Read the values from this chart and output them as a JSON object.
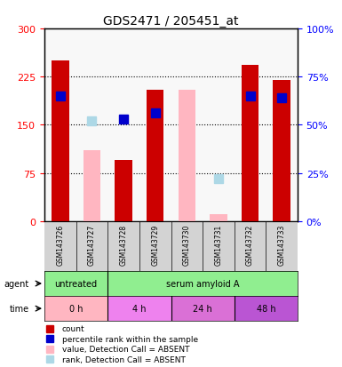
{
  "title": "GDS2471 / 205451_at",
  "samples": [
    "GSM143726",
    "GSM143727",
    "GSM143728",
    "GSM143729",
    "GSM143730",
    "GSM143731",
    "GSM143732",
    "GSM143733"
  ],
  "red_values": [
    250,
    0,
    95,
    205,
    0,
    5,
    243,
    220
  ],
  "pink_values": [
    0,
    110,
    0,
    0,
    205,
    10,
    0,
    0
  ],
  "blue_pct": [
    65,
    0,
    53,
    56,
    0,
    0,
    65,
    64
  ],
  "lblue_pct": [
    0,
    52,
    0,
    0,
    0,
    22,
    0,
    0
  ],
  "ylim_left": [
    0,
    300
  ],
  "ylim_right": [
    0,
    100
  ],
  "yticks_left": [
    0,
    75,
    150,
    225,
    300
  ],
  "ytick_labels_left": [
    "0",
    "75",
    "150",
    "225",
    "300"
  ],
  "ytick_labels_right": [
    "0%",
    "25%",
    "50%",
    "75%",
    "100%"
  ],
  "colors": {
    "red": "#CC0000",
    "pink": "#FFB6C1",
    "blue": "#0000CC",
    "light_blue": "#ADD8E6",
    "bg_sample": "#D3D3D3"
  },
  "time_colors": [
    "#FFB6C1",
    "#EE82EE",
    "#DA70D6",
    "#BA55D3"
  ],
  "time_labels": [
    "0 h",
    "4 h",
    "24 h",
    "48 h"
  ],
  "time_ranges": [
    [
      -0.5,
      1.5
    ],
    [
      1.5,
      3.5
    ],
    [
      3.5,
      5.5
    ],
    [
      5.5,
      7.5
    ]
  ],
  "time_centers": [
    0.5,
    2.5,
    4.5,
    6.5
  ],
  "agent_color": "#90EE90",
  "legend_colors": [
    "#CC0000",
    "#0000CC",
    "#FFB6C1",
    "#ADD8E6"
  ],
  "legend_labels": [
    "count",
    "percentile rank within the sample",
    "value, Detection Call = ABSENT",
    "rank, Detection Call = ABSENT"
  ]
}
